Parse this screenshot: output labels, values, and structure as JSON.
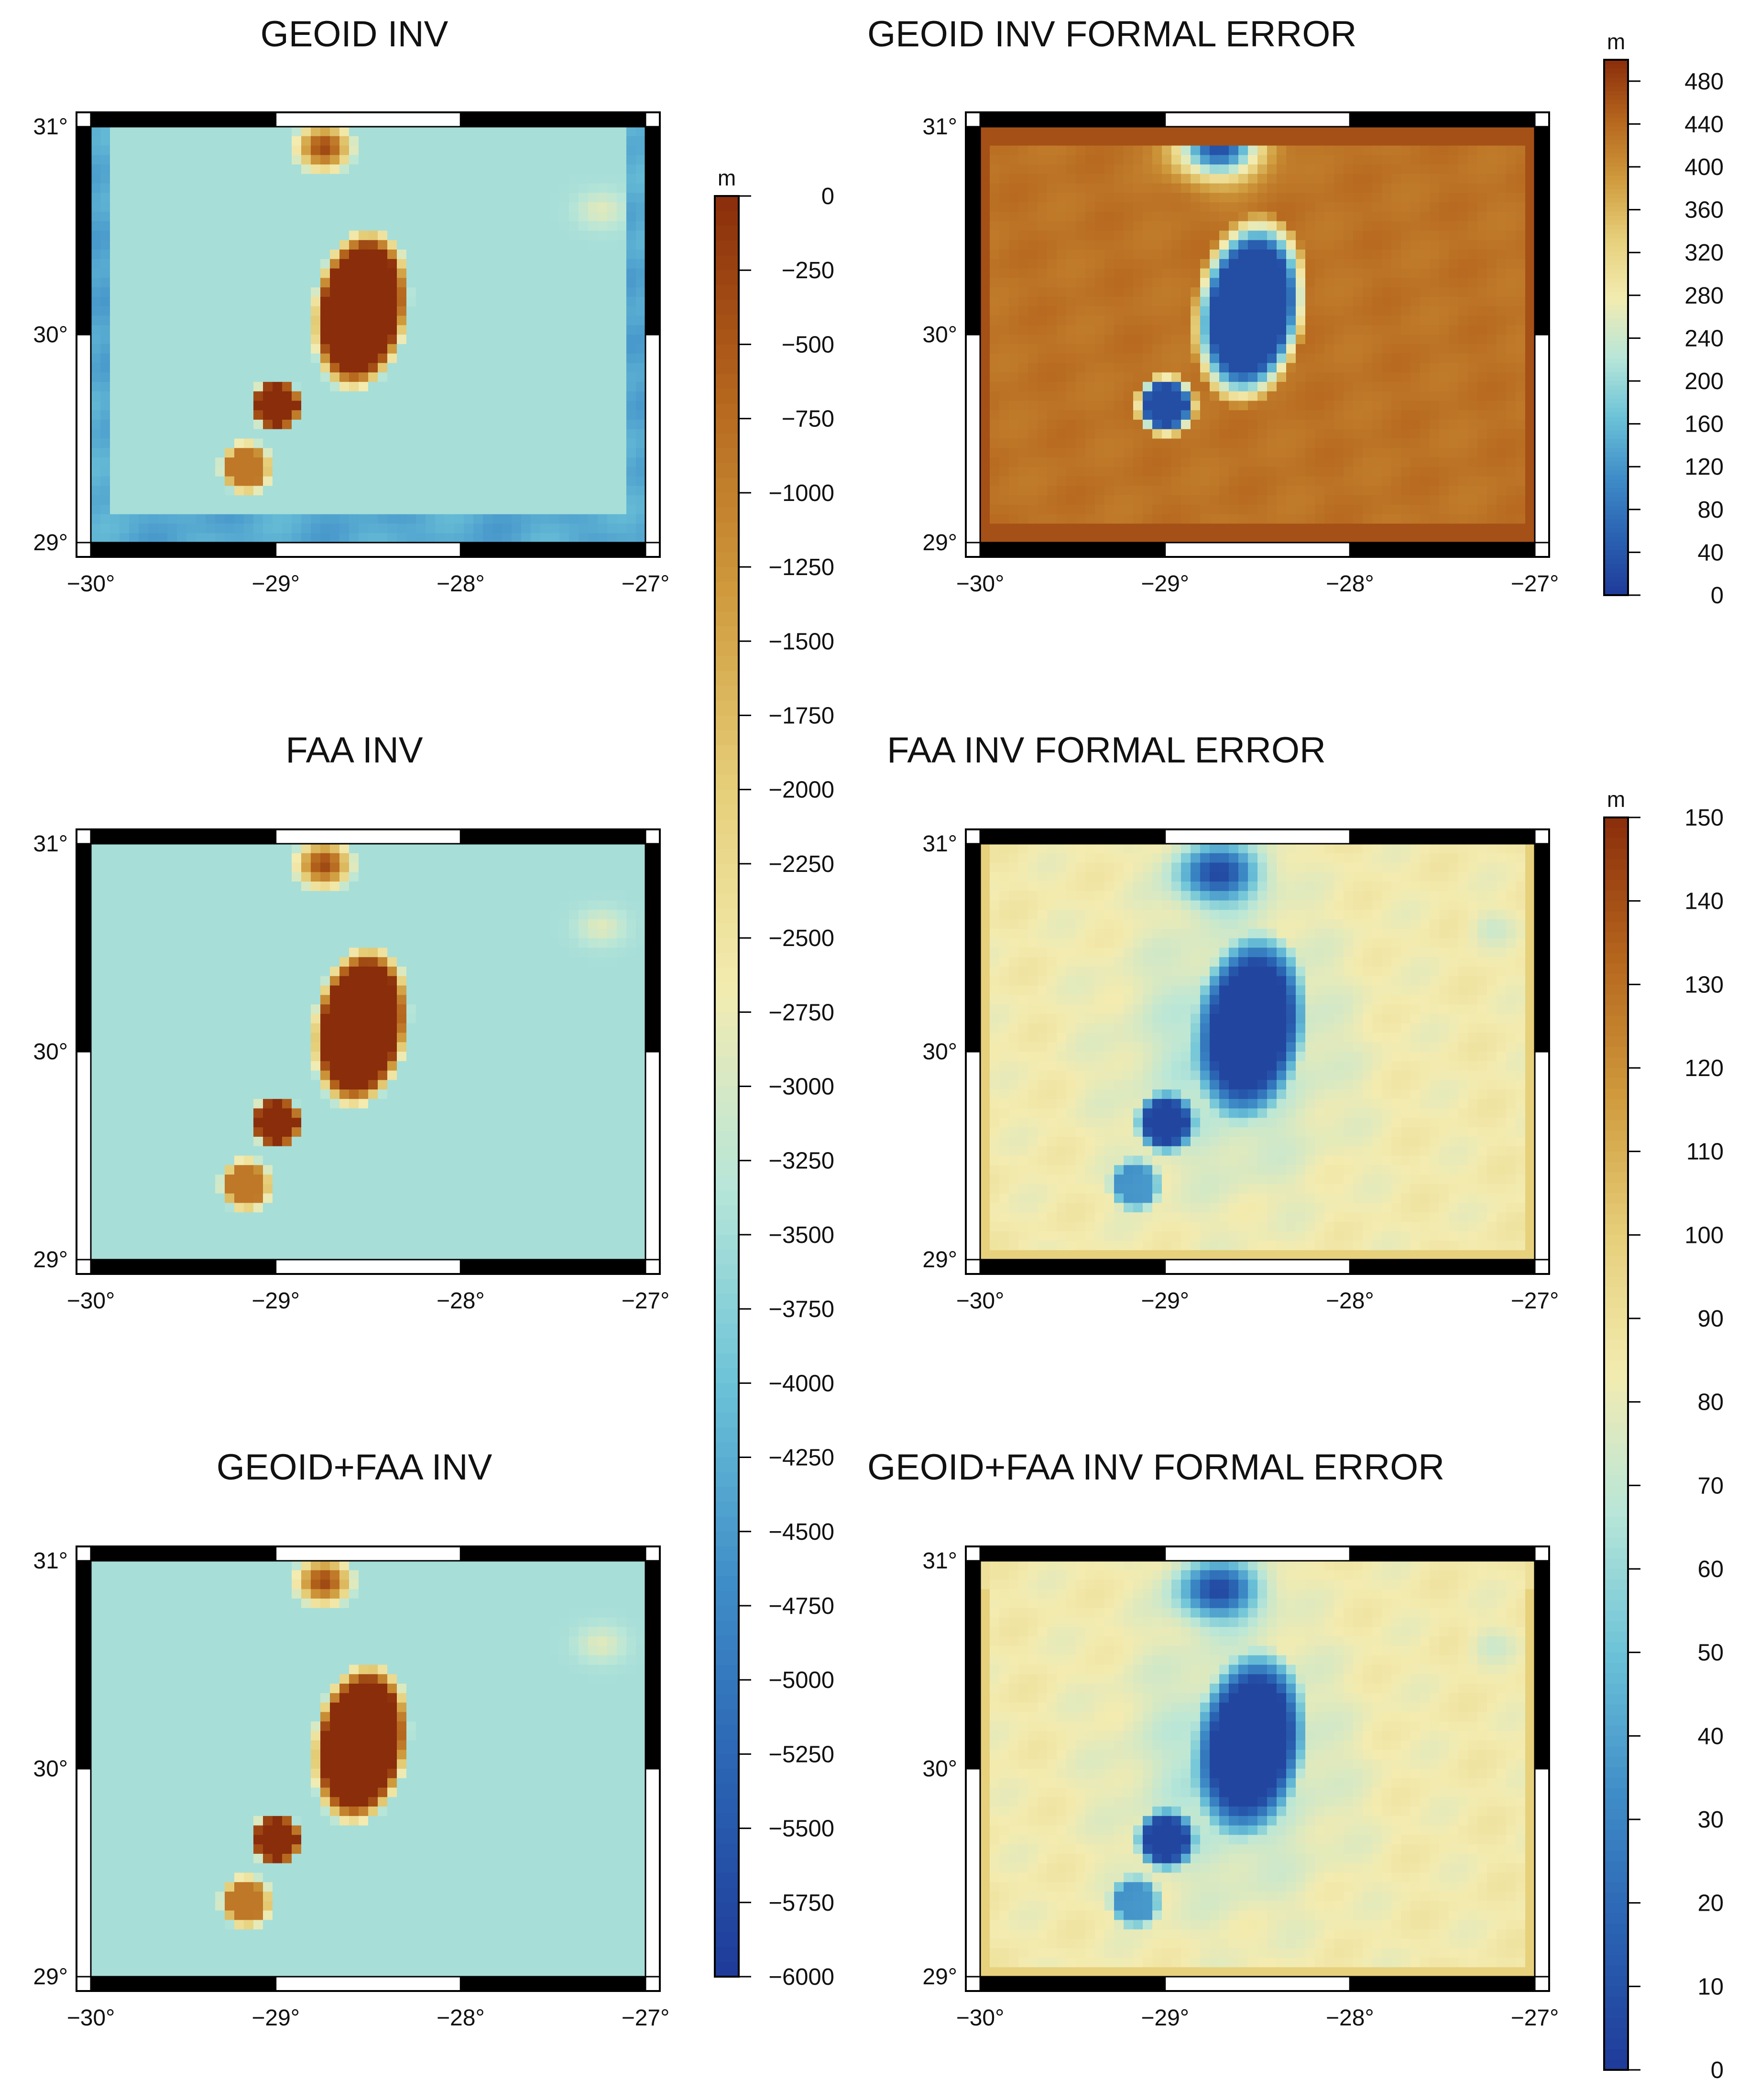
{
  "chart_data": [
    {
      "type": "heatmap",
      "title": "GEOID INV",
      "x_ticks": [
        "−30°",
        "−29°",
        "−28°",
        "−27°"
      ],
      "y_ticks": [
        "29°",
        "30°",
        "31°"
      ],
      "xlim": [
        -30,
        -27
      ],
      "ylim": [
        29,
        31
      ],
      "colorbar": "depth",
      "style": "geoid"
    },
    {
      "type": "heatmap",
      "title": "GEOID INV FORMAL ERROR",
      "x_ticks": [
        "−30°",
        "−29°",
        "−28°",
        "−27°"
      ],
      "y_ticks": [
        "29°",
        "30°",
        "31°"
      ],
      "xlim": [
        -30,
        -27
      ],
      "ylim": [
        29,
        31
      ],
      "colorbar": "geoid_error",
      "style": "geoid_err"
    },
    {
      "type": "heatmap",
      "title": "FAA INV",
      "x_ticks": [
        "−30°",
        "−29°",
        "−28°",
        "−27°"
      ],
      "y_ticks": [
        "29°",
        "30°",
        "31°"
      ],
      "xlim": [
        -30,
        -27
      ],
      "ylim": [
        29,
        31
      ],
      "colorbar": "depth",
      "style": "faa"
    },
    {
      "type": "heatmap",
      "title": "FAA INV FORMAL ERROR",
      "x_ticks": [
        "−30°",
        "−29°",
        "−28°",
        "−27°"
      ],
      "y_ticks": [
        "29°",
        "30°",
        "31°"
      ],
      "xlim": [
        -30,
        -27
      ],
      "ylim": [
        29,
        31
      ],
      "colorbar": "faa_error",
      "style": "faa_err"
    },
    {
      "type": "heatmap",
      "title": "GEOID+FAA INV",
      "x_ticks": [
        "−30°",
        "−29°",
        "−28°",
        "−27°"
      ],
      "y_ticks": [
        "29°",
        "30°",
        "31°"
      ],
      "xlim": [
        -30,
        -27
      ],
      "ylim": [
        29,
        31
      ],
      "colorbar": "depth",
      "style": "combo"
    },
    {
      "type": "heatmap",
      "title": "GEOID+FAA INV FORMAL ERROR",
      "x_ticks": [
        "−30°",
        "−29°",
        "−28°",
        "−27°"
      ],
      "y_ticks": [
        "29°",
        "30°",
        "31°"
      ],
      "xlim": [
        -30,
        -27
      ],
      "ylim": [
        29,
        31
      ],
      "colorbar": "faa_error",
      "style": "combo_err"
    }
  ],
  "colorbars": {
    "depth": {
      "unit": "m",
      "min": -6000,
      "max": 0,
      "ticks": [
        "0",
        "−250",
        "−500",
        "−750",
        "−1000",
        "−1250",
        "−1500",
        "−1750",
        "−2000",
        "−2250",
        "−2500",
        "−2750",
        "−3000",
        "−3250",
        "−3500",
        "−3750",
        "−4000",
        "−4250",
        "−4500",
        "−4750",
        "−5000",
        "−5250",
        "−5500",
        "−5750",
        "−6000"
      ]
    },
    "geoid_error": {
      "unit": "m",
      "min": 0,
      "max": 500,
      "ticks": [
        "480",
        "440",
        "400",
        "360",
        "320",
        "280",
        "240",
        "200",
        "160",
        "120",
        "80",
        "40",
        "0"
      ]
    },
    "faa_error": {
      "unit": "m",
      "min": 0,
      "max": 150,
      "ticks": [
        "150",
        "140",
        "130",
        "120",
        "110",
        "100",
        "90",
        "80",
        "70",
        "60",
        "50",
        "40",
        "30",
        "20",
        "10",
        "0"
      ]
    }
  },
  "colors": {
    "ramp": [
      "#1f3b99",
      "#2a62b2",
      "#3f8ec8",
      "#6cc3d8",
      "#b8e6d8",
      "#f3ebb0",
      "#e6cf7a",
      "#cf9a3c",
      "#b5651d",
      "#8a2d0b"
    ]
  }
}
